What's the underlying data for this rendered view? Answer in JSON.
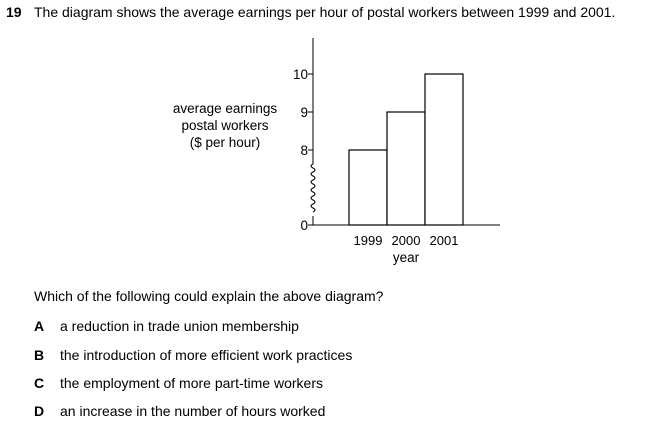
{
  "question": {
    "number": "19",
    "text": "The diagram shows the average earnings per hour of postal workers between 1999 and 2001."
  },
  "chart_data": {
    "type": "bar",
    "categories": [
      "1999",
      "2000",
      "2001"
    ],
    "values": [
      8,
      9,
      10
    ],
    "ylabel_lines": [
      "average earnings",
      "postal workers",
      "($ per hour)"
    ],
    "xlabel": "year",
    "yticks": [
      0,
      8,
      9,
      10
    ],
    "ylim": [
      0,
      10
    ],
    "axis_break": true,
    "grid": false
  },
  "prompt": "Which of the following could explain the above diagram?",
  "options": [
    {
      "letter": "A",
      "text": "a reduction in trade union membership"
    },
    {
      "letter": "B",
      "text": "the introduction of more efficient work practices"
    },
    {
      "letter": "C",
      "text": "the employment of more part-time workers"
    },
    {
      "letter": "D",
      "text": "an increase in the number of hours worked"
    }
  ]
}
